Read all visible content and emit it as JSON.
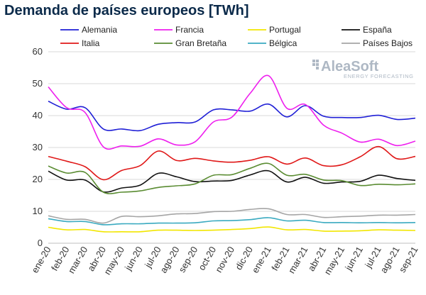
{
  "chart_data": {
    "type": "line",
    "title": "Demanda de países europeos [TWh]",
    "xlabel": "",
    "ylabel": "",
    "ylim": [
      0,
      60
    ],
    "yticks": [
      0,
      10,
      20,
      30,
      40,
      50,
      60
    ],
    "grid": "horizontal",
    "legend": "top",
    "categories": [
      "ene-20",
      "feb-20",
      "mar-20",
      "abr-20",
      "may-20",
      "jun-20",
      "jul-20",
      "ago-20",
      "sep-20",
      "oct-20",
      "nov-20",
      "dic-20",
      "ene-21",
      "feb-21",
      "mar-21",
      "abr-21",
      "may-21",
      "jun-21",
      "jul-21",
      "ago-21",
      "sep-21"
    ],
    "series": [
      {
        "name": "Alemania",
        "color": "#1f1fd6",
        "values": [
          44.5,
          42.0,
          42.5,
          35.8,
          35.8,
          35.3,
          37.3,
          37.8,
          38.0,
          41.8,
          41.8,
          41.4,
          43.6,
          39.6,
          43.1,
          39.8,
          39.4,
          39.4,
          40.1,
          38.8,
          39.2
        ]
      },
      {
        "name": "Francia",
        "color": "#ee1fee",
        "values": [
          49.0,
          42.5,
          41.0,
          30.2,
          30.5,
          30.4,
          32.7,
          30.8,
          31.8,
          38.0,
          39.5,
          47.0,
          52.5,
          42.3,
          43.5,
          37.0,
          34.5,
          31.7,
          32.6,
          30.6,
          32.0
        ]
      },
      {
        "name": "Portugal",
        "color": "#f2e600",
        "values": [
          5.0,
          4.2,
          4.3,
          3.6,
          3.6,
          3.6,
          4.1,
          4.1,
          4.0,
          4.1,
          4.3,
          4.6,
          5.1,
          4.2,
          4.3,
          3.8,
          3.8,
          3.9,
          4.2,
          4.1,
          4.0
        ]
      },
      {
        "name": "España",
        "color": "#111111",
        "values": [
          22.6,
          19.8,
          19.8,
          16.1,
          17.3,
          18.2,
          21.9,
          20.8,
          19.3,
          19.5,
          19.7,
          21.4,
          22.7,
          19.2,
          20.7,
          18.8,
          19.2,
          19.4,
          21.3,
          20.3,
          19.7
        ]
      },
      {
        "name": "Italia",
        "color": "#e01818",
        "values": [
          27.2,
          25.7,
          24.0,
          19.9,
          22.8,
          24.3,
          28.9,
          25.9,
          26.6,
          25.8,
          25.4,
          26.0,
          27.1,
          24.8,
          26.7,
          24.3,
          24.6,
          27.1,
          30.3,
          26.5,
          27.2
        ]
      },
      {
        "name": "Gran Bretaña",
        "color": "#5a8c32",
        "values": [
          24.2,
          22.0,
          22.2,
          16.0,
          16.0,
          16.4,
          17.5,
          18.0,
          18.6,
          21.3,
          21.5,
          23.5,
          25.0,
          21.3,
          21.6,
          19.8,
          19.6,
          18.1,
          18.5,
          18.3,
          18.6
        ]
      },
      {
        "name": "Bélgica",
        "color": "#3aaac0",
        "values": [
          7.7,
          6.8,
          6.8,
          5.8,
          6.1,
          6.1,
          6.3,
          6.3,
          6.4,
          7.0,
          7.1,
          7.4,
          8.0,
          7.0,
          7.2,
          6.5,
          6.5,
          6.4,
          6.5,
          6.4,
          6.5
        ]
      },
      {
        "name": "Países Bajos",
        "color": "#a5a5a5",
        "values": [
          8.6,
          7.5,
          7.5,
          6.3,
          8.4,
          8.3,
          8.6,
          9.2,
          9.3,
          9.9,
          10.0,
          10.6,
          10.8,
          9.0,
          9.0,
          8.1,
          8.3,
          8.5,
          8.8,
          8.8,
          9.0
        ]
      }
    ]
  },
  "watermark": {
    "brand": "AleaSoft",
    "tagline": "ENERGY FORECASTING",
    "color": "#aeb8c4"
  }
}
